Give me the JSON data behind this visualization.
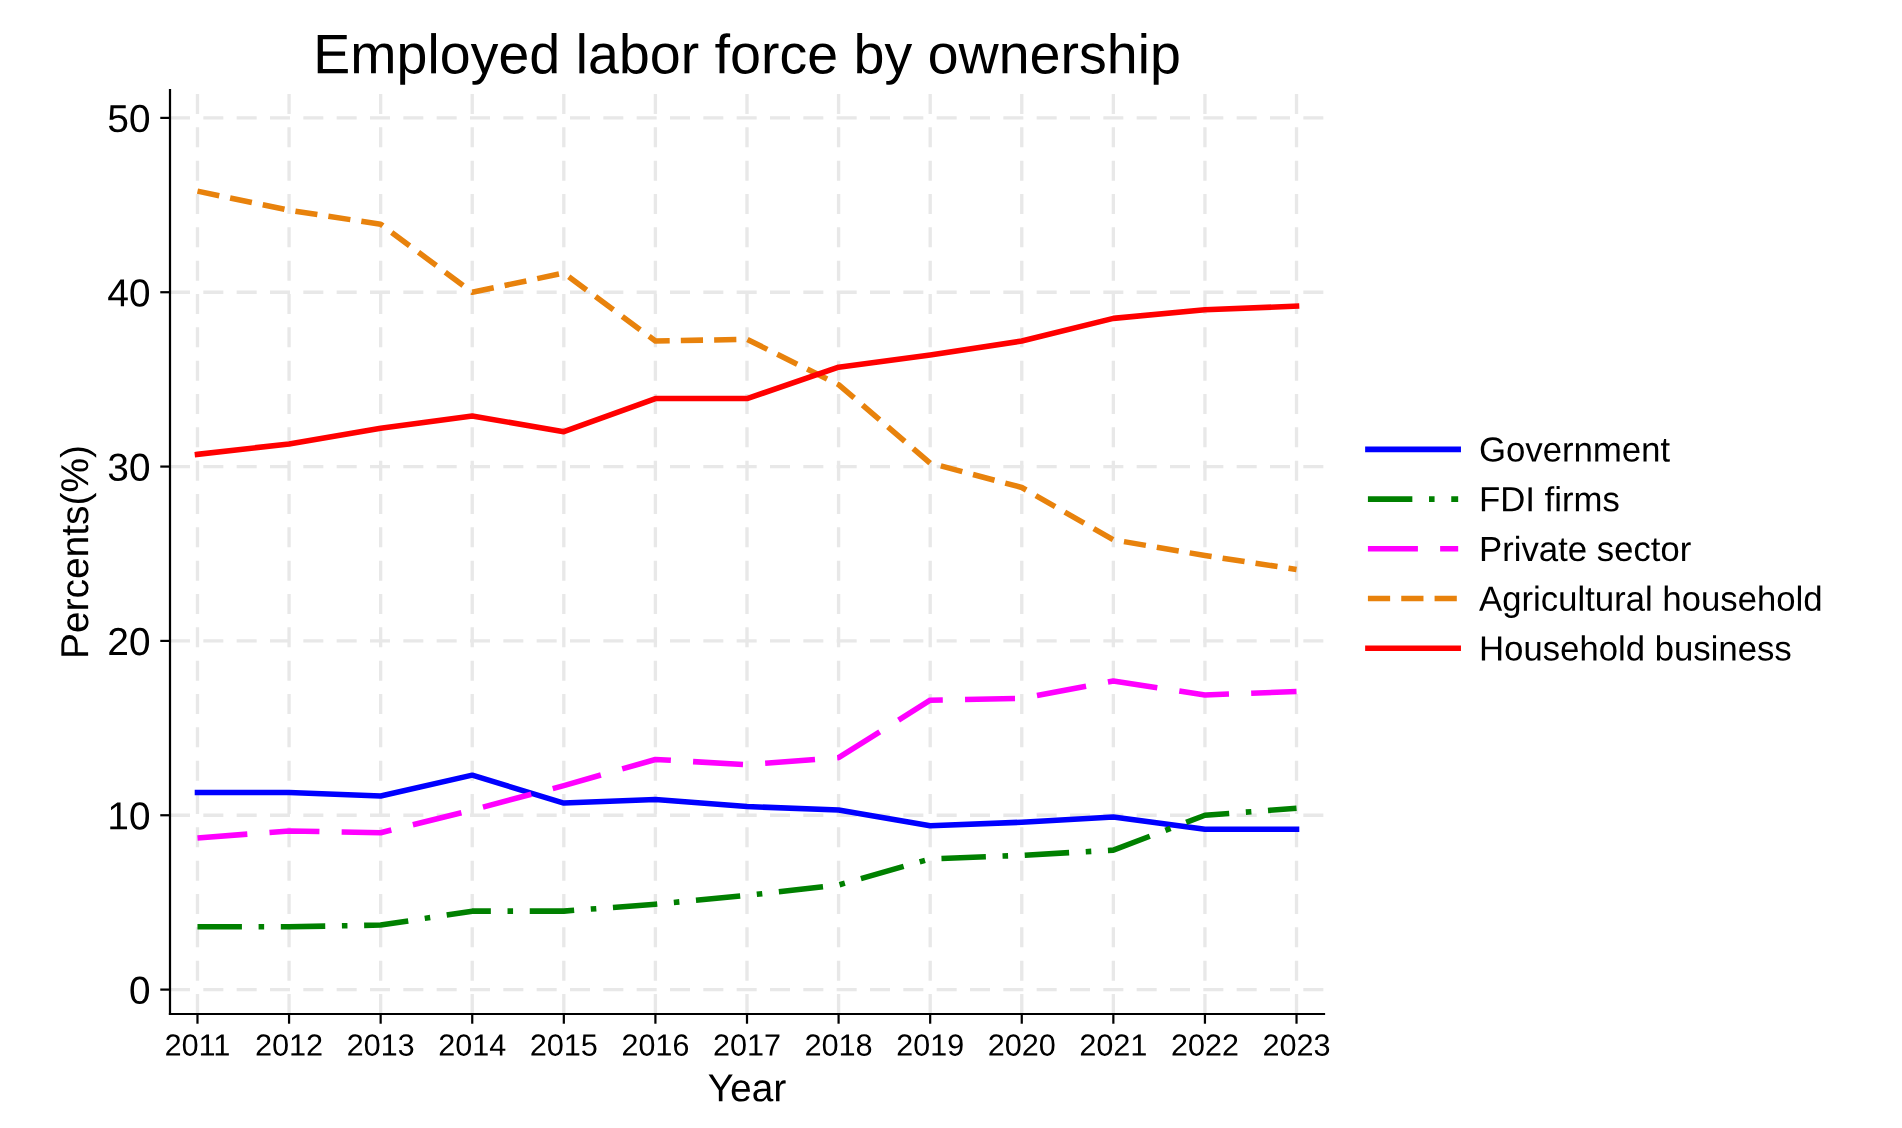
{
  "chart_data": {
    "type": "line",
    "title": "Employed labor force by ownership",
    "xlabel": "Year",
    "ylabel": "Percents(%)",
    "x": [
      2011,
      2012,
      2013,
      2014,
      2015,
      2016,
      2017,
      2018,
      2019,
      2020,
      2021,
      2022,
      2023
    ],
    "xlim": [
      2010.7,
      2023.3
    ],
    "xticks": [
      2011,
      2012,
      2013,
      2014,
      2015,
      2016,
      2017,
      2018,
      2019,
      2020,
      2021,
      2022,
      2023
    ],
    "ylim": [
      -1.4,
      51.6
    ],
    "yticks": [
      0,
      10,
      20,
      30,
      40,
      50
    ],
    "grid": true,
    "legend": "right",
    "marker": "none",
    "series": [
      {
        "name": "Government",
        "color": "#0000ff",
        "line_style": "solid",
        "values": [
          11.3,
          11.3,
          11.1,
          12.3,
          10.7,
          10.9,
          10.5,
          10.3,
          9.4,
          9.6,
          9.9,
          9.2,
          9.2
        ]
      },
      {
        "name": "FDI firms",
        "color": "#008000",
        "line_style": "dashdot",
        "values": [
          3.6,
          3.6,
          3.7,
          4.5,
          4.5,
          4.9,
          5.4,
          6.0,
          7.5,
          7.7,
          8.0,
          10.0,
          10.4
        ]
      },
      {
        "name": "Private sector",
        "color": "#ff00ff",
        "line_style": "longdash",
        "values": [
          8.7,
          9.1,
          9.0,
          10.3,
          11.7,
          13.2,
          12.9,
          13.3,
          16.6,
          16.7,
          17.7,
          16.9,
          17.1
        ]
      },
      {
        "name": "Agricultural household",
        "color": "#e8820c",
        "line_style": "dashed",
        "values": [
          45.8,
          44.7,
          43.9,
          40.0,
          41.1,
          37.2,
          37.3,
          34.7,
          30.2,
          28.8,
          25.8,
          24.9,
          24.1
        ]
      },
      {
        "name": "Household business",
        "color": "#ff0000",
        "line_style": "solid",
        "values": [
          30.7,
          31.3,
          32.2,
          32.9,
          32.0,
          33.9,
          33.9,
          35.7,
          36.4,
          37.2,
          38.5,
          39.0,
          39.2
        ]
      }
    ]
  }
}
